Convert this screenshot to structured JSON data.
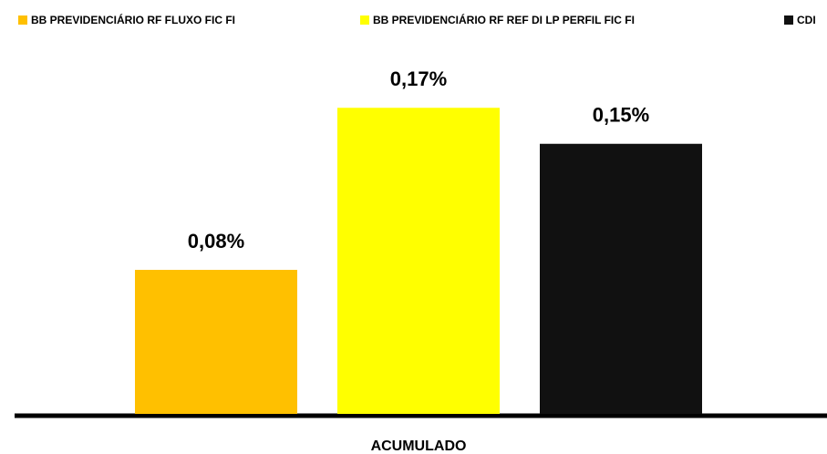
{
  "chart_data": {
    "type": "bar",
    "categories": [
      "ACUMULADO"
    ],
    "series": [
      {
        "name": "BB PREVIDENCIÁRIO RF FLUXO FIC FI",
        "color": "#ffc000",
        "values": [
          0.08
        ],
        "value_labels": [
          "0,08%"
        ]
      },
      {
        "name": "BB PREVIDENCIÁRIO RF REF DI LP PERFIL FIC FI",
        "color": "#ffff00",
        "values": [
          0.17
        ],
        "value_labels": [
          "0,17%"
        ]
      },
      {
        "name": "CDI",
        "color": "#111111",
        "values": [
          0.15
        ],
        "value_labels": [
          "0,15%"
        ]
      }
    ],
    "legend": "top"
  }
}
